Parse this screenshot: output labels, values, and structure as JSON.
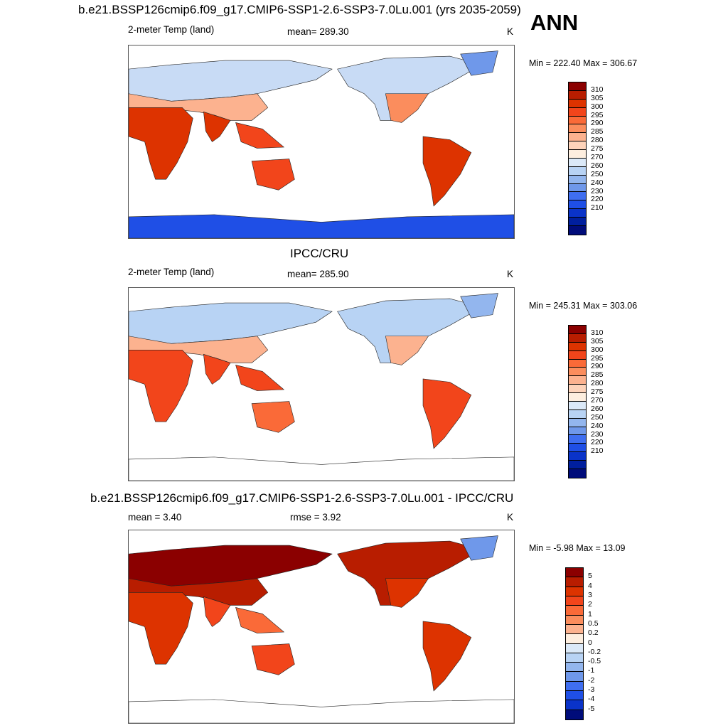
{
  "header": {
    "main_title": "b.e21.BSSP126cmip6.f09_g17.CMIP6-SSP1-2.6-SSP3-7.0Lu.001 (yrs 2035-2059)",
    "season": "ANN"
  },
  "panels": [
    {
      "variable": "2-meter Temp (land)",
      "stat_text": "mean= 289.30",
      "units": "K",
      "minmax": "Min = 222.40 Max = 306.67",
      "palette": "absolute-warm"
    },
    {
      "title": "IPCC/CRU",
      "variable": "2-meter Temp (land)",
      "stat_text": "mean= 285.90",
      "units": "K",
      "minmax": "Min = 245.31 Max = 303.06",
      "palette": "absolute-obs"
    },
    {
      "title": "b.e21.BSSP126cmip6.f09_g17.CMIP6-SSP1-2.6-SSP3-7.0Lu.001 - IPCC/CRU",
      "stat_text": "mean =   3.40",
      "stat2_text": "rmse =   3.92",
      "units": "K",
      "minmax": "Min =  -5.98 Max =  13.09",
      "palette": "difference"
    }
  ],
  "colorbar_abs": {
    "labels": [
      "310",
      "305",
      "300",
      "295",
      "290",
      "285",
      "280",
      "275",
      "270",
      "260",
      "250",
      "240",
      "230",
      "220",
      "210"
    ],
    "colors": [
      "#8b0000",
      "#b81d00",
      "#dd3300",
      "#f2451b",
      "#fa6a38",
      "#fb8d5d",
      "#fcb28f",
      "#fdd3ba",
      "#fdeedf",
      "#dbe9f8",
      "#b8d3f4",
      "#93b6ee",
      "#6f98ea",
      "#3f6ef0",
      "#1f4fe6",
      "#0a33c9",
      "#001f9e",
      "#000c7a"
    ]
  },
  "colorbar_diff": {
    "labels": [
      "5",
      "4",
      "3",
      "2",
      "1",
      "0.5",
      "0.2",
      "0",
      "-0.2",
      "-0.5",
      "-1",
      "-2",
      "-3",
      "-4",
      "-5"
    ],
    "colors": [
      "#8b0000",
      "#b81d00",
      "#dd3300",
      "#f2451b",
      "#fa6a38",
      "#fb8d5d",
      "#fcb28f",
      "#fdeedf",
      "#dbe9f8",
      "#b8d3f4",
      "#93b6ee",
      "#6f98ea",
      "#3f6ef0",
      "#1f4fe6",
      "#0a33c9",
      "#000c7a"
    ]
  }
}
